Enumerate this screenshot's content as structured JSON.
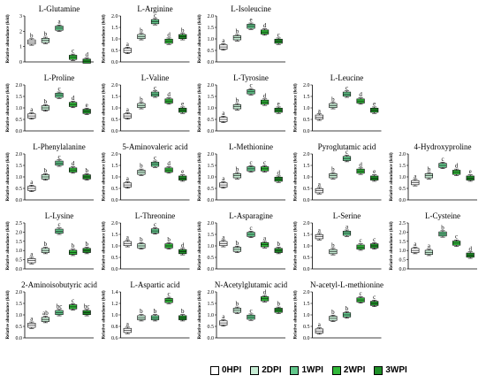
{
  "legend": [
    {
      "label": "0HPI",
      "color": "#ffffff"
    },
    {
      "label": "2DPI",
      "color": "#c6ecd4"
    },
    {
      "label": "1WPI",
      "color": "#62c78b"
    },
    {
      "label": "2WPI",
      "color": "#31b83a"
    },
    {
      "label": "3WPI",
      "color": "#1f8f28"
    }
  ],
  "chart_data": [
    {
      "type": "box",
      "title": "L-Glutamine",
      "ylabel": "Relative abundance (fold)",
      "ylim": [
        0,
        3
      ],
      "yticks": [
        "0",
        "1",
        "2",
        "3"
      ],
      "categories": [
        "0HPI",
        "2DPI",
        "1WPI",
        "2WPI",
        "3WPI"
      ],
      "values": [
        1.3,
        1.4,
        2.2,
        0.3,
        0.05
      ],
      "letters": [
        "b",
        "b",
        "a",
        "c",
        "d"
      ]
    },
    {
      "type": "box",
      "title": "L-Arginine",
      "ylabel": "Relative abundance (fold)",
      "ylim": [
        0,
        2.0
      ],
      "yticks": [
        "0.0",
        "0.5",
        "1.0",
        "1.5",
        "2.0"
      ],
      "categories": [
        "0HPI",
        "2DPI",
        "1WPI",
        "2WPI",
        "3WPI"
      ],
      "values": [
        0.5,
        1.1,
        1.75,
        0.9,
        1.1
      ],
      "letters": [
        "a",
        "b",
        "c",
        "d",
        "b"
      ]
    },
    {
      "type": "box",
      "title": "L-Isoleucine",
      "ylabel": "Relative abundance (fold)",
      "ylim": [
        0,
        2.0
      ],
      "yticks": [
        "0.0",
        "0.5",
        "1.0",
        "1.5",
        "2.0"
      ],
      "categories": [
        "0HPI",
        "2DPI",
        "1WPI",
        "2WPI",
        "3WPI"
      ],
      "values": [
        0.65,
        1.05,
        1.55,
        1.3,
        0.9
      ],
      "letters": [
        "a",
        "b",
        "e",
        "d",
        "c"
      ]
    },
    {
      "type": "box",
      "title": "L-Proline",
      "ylabel": "Relative abundance (fold)",
      "ylim": [
        0,
        2.0
      ],
      "yticks": [
        "0.0",
        "0.5",
        "1.0",
        "1.5",
        "2.0"
      ],
      "categories": [
        "0HPI",
        "2DPI",
        "1WPI",
        "2WPI",
        "3WPI"
      ],
      "values": [
        0.65,
        1.0,
        1.55,
        1.15,
        0.85
      ],
      "letters": [
        "a",
        "b",
        "c",
        "d",
        "e"
      ]
    },
    {
      "type": "box",
      "title": "L-Valine",
      "ylabel": "Relative abundance (fold)",
      "ylim": [
        0,
        2.0
      ],
      "yticks": [
        "0.0",
        "0.5",
        "1.0",
        "1.5",
        "2.0"
      ],
      "categories": [
        "0HPI",
        "2DPI",
        "1WPI",
        "2WPI",
        "3WPI"
      ],
      "values": [
        0.65,
        1.1,
        1.6,
        1.3,
        0.9
      ],
      "letters": [
        "a",
        "b",
        "c",
        "d",
        "e"
      ]
    },
    {
      "type": "box",
      "title": "L-Tyrosine",
      "ylabel": "Relative abundance (fold)",
      "ylim": [
        0,
        2.0
      ],
      "yticks": [
        "0.0",
        "0.5",
        "1.0",
        "1.5",
        "2.0"
      ],
      "categories": [
        "0HPI",
        "2DPI",
        "1WPI",
        "2WPI",
        "3WPI"
      ],
      "values": [
        0.5,
        1.05,
        1.7,
        1.25,
        0.9
      ],
      "letters": [
        "a",
        "b",
        "c",
        "d",
        "e"
      ]
    },
    {
      "type": "box",
      "title": "L-Leucine",
      "ylabel": "Relative abundance (fold)",
      "ylim": [
        0,
        2.0
      ],
      "yticks": [
        "0.0",
        "0.5",
        "1.0",
        "1.5",
        "2.0"
      ],
      "categories": [
        "0HPI",
        "2DPI",
        "1WPI",
        "2WPI",
        "3WPI"
      ],
      "values": [
        0.6,
        1.1,
        1.6,
        1.3,
        0.9
      ],
      "letters": [
        "a",
        "b",
        "c",
        "d",
        "e"
      ]
    },
    {
      "type": "box",
      "title": "L-Phenylalanine",
      "ylabel": "Relative abundance (fold)",
      "ylim": [
        0,
        2.0
      ],
      "yticks": [
        "0.0",
        "0.5",
        "1.0",
        "1.5",
        "2.0"
      ],
      "categories": [
        "0HPI",
        "2DPI",
        "1WPI",
        "2WPI",
        "3WPI"
      ],
      "values": [
        0.5,
        1.0,
        1.6,
        1.3,
        1.0
      ],
      "letters": [
        "a",
        "b",
        "c",
        "d",
        "b"
      ]
    },
    {
      "type": "box",
      "title": "5-Aminovaleric acid",
      "ylabel": "Relative abundance (fold)",
      "ylim": [
        0,
        2.0
      ],
      "yticks": [
        "0.0",
        "0.5",
        "1.0",
        "1.5",
        "2.0"
      ],
      "categories": [
        "0HPI",
        "2DPI",
        "1WPI",
        "2WPI",
        "3WPI"
      ],
      "values": [
        0.65,
        1.2,
        1.55,
        1.3,
        0.95
      ],
      "letters": [
        "a",
        "b",
        "c",
        "d",
        "e"
      ]
    },
    {
      "type": "box",
      "title": "L-Methionine",
      "ylabel": "Relative abundance (fold)",
      "ylim": [
        0,
        2.0
      ],
      "yticks": [
        "0.0",
        "0.5",
        "1.0",
        "1.5",
        "2.0"
      ],
      "categories": [
        "0HPI",
        "2DPI",
        "1WPI",
        "2WPI",
        "3WPI"
      ],
      "values": [
        0.65,
        1.05,
        1.35,
        1.35,
        0.9
      ],
      "letters": [
        "a",
        "b",
        "c",
        "c",
        "d"
      ]
    },
    {
      "type": "box",
      "title": "Pyroglutamic acid",
      "ylabel": "Relative abundance (fold)",
      "ylim": [
        0,
        2.0
      ],
      "yticks": [
        "0.0",
        "0.5",
        "1.0",
        "1.5",
        "2.0"
      ],
      "categories": [
        "0HPI",
        "2DPI",
        "1WPI",
        "2WPI",
        "3WPI"
      ],
      "values": [
        0.4,
        1.05,
        1.8,
        1.25,
        0.95
      ],
      "letters": [
        "a",
        "b",
        "c",
        "d",
        "e"
      ]
    },
    {
      "type": "box",
      "title": "4-Hydroxyproline",
      "ylabel": "Relative abundance (fold)",
      "ylim": [
        0,
        2.0
      ],
      "yticks": [
        "0.0",
        "0.5",
        "1.0",
        "1.5",
        "2.0"
      ],
      "categories": [
        "0HPI",
        "2DPI",
        "1WPI",
        "2WPI",
        "3WPI"
      ],
      "values": [
        0.75,
        1.05,
        1.5,
        1.2,
        0.95
      ],
      "letters": [
        "a",
        "b",
        "c",
        "d",
        "e"
      ]
    },
    {
      "type": "box",
      "title": "L-Lysine",
      "ylabel": "Relative abundance (fold)",
      "ylim": [
        0,
        2.5
      ],
      "yticks": [
        "0.0",
        "0.5",
        "1.0",
        "1.5",
        "2.0",
        "2.5"
      ],
      "categories": [
        "0HPI",
        "2DPI",
        "1WPI",
        "2WPI",
        "3WPI"
      ],
      "values": [
        0.45,
        1.0,
        2.05,
        0.9,
        1.0
      ],
      "letters": [
        "a",
        "b",
        "c",
        "b",
        "b"
      ]
    },
    {
      "type": "box",
      "title": "L-Threonine",
      "ylabel": "Relative abundance (fold)",
      "ylim": [
        0,
        2.0
      ],
      "yticks": [
        "0.0",
        "0.5",
        "1.0",
        "1.5",
        "2.0"
      ],
      "categories": [
        "0HPI",
        "2DPI",
        "1WPI",
        "2WPI",
        "3WPI"
      ],
      "values": [
        1.1,
        1.0,
        1.65,
        1.0,
        0.75
      ],
      "letters": [
        "a",
        "b",
        "c",
        "b",
        "d"
      ]
    },
    {
      "type": "box",
      "title": "L-Asparagine",
      "ylabel": "Relative abundance (fold)",
      "ylim": [
        0,
        2.0
      ],
      "yticks": [
        "0.0",
        "0.5",
        "1.0",
        "1.5",
        "2.0"
      ],
      "categories": [
        "0HPI",
        "2DPI",
        "1WPI",
        "2WPI",
        "3WPI"
      ],
      "values": [
        1.1,
        0.85,
        1.5,
        1.05,
        0.8
      ],
      "letters": [
        "a",
        "b",
        "c",
        "a",
        "b"
      ]
    },
    {
      "type": "box",
      "title": "L-Serine",
      "ylabel": "Relative abundance (fold)",
      "ylim": [
        0,
        2.0
      ],
      "yticks": [
        "0.0",
        "0.5",
        "1.0",
        "1.5",
        "2.0"
      ],
      "categories": [
        "0HPI",
        "2DPI",
        "1WPI",
        "2WPI",
        "3WPI"
      ],
      "values": [
        1.4,
        0.75,
        1.55,
        0.95,
        1.0
      ],
      "letters": [
        "a",
        "b",
        "a",
        "c",
        "c"
      ]
    },
    {
      "type": "box",
      "title": "L-Cysteine",
      "ylabel": "Relative abundance (fold)",
      "ylim": [
        0,
        2.5
      ],
      "yticks": [
        "0.0",
        "0.5",
        "1.0",
        "1.5",
        "2.0",
        "2.5"
      ],
      "categories": [
        "0HPI",
        "2DPI",
        "1WPI",
        "2WPI",
        "3WPI"
      ],
      "values": [
        1.0,
        0.9,
        1.9,
        1.4,
        0.75
      ],
      "letters": [
        "a",
        "a",
        "b",
        "c",
        "d"
      ]
    },
    {
      "type": "box",
      "title": "2-Aminoisobutyric acid",
      "ylabel": "Relative abundance (fold)",
      "ylim": [
        0,
        2.0
      ],
      "yticks": [
        "0.0",
        "0.5",
        "1.0",
        "1.5",
        "2.0"
      ],
      "categories": [
        "0HPI",
        "2DPI",
        "1WPI",
        "2WPI",
        "3WPI"
      ],
      "values": [
        0.55,
        0.8,
        1.1,
        1.35,
        1.1
      ],
      "letters": [
        "a",
        "ab",
        "bc",
        "c",
        "bc"
      ]
    },
    {
      "type": "box",
      "title": "L-Aspartic acid",
      "ylabel": "Relative abundance (fold)",
      "ylim": [
        0.6,
        1.4
      ],
      "yticks": [
        "0.6",
        "0.8",
        "1.0",
        "1.2",
        "1.4"
      ],
      "categories": [
        "0HPI",
        "2DPI",
        "1WPI",
        "2WPI",
        "3WPI"
      ],
      "values": [
        0.73,
        0.95,
        0.95,
        1.25,
        0.95
      ],
      "letters": [
        "a",
        "b",
        "b",
        "c",
        "b"
      ]
    },
    {
      "type": "box",
      "title": "N-Acetylglutamic acid",
      "ylabel": "Relative abundance (fold)",
      "ylim": [
        0,
        2.0
      ],
      "yticks": [
        "0.0",
        "0.5",
        "1.0",
        "1.5",
        "2.0"
      ],
      "categories": [
        "0HPI",
        "2DPI",
        "1WPI",
        "2WPI",
        "3WPI"
      ],
      "values": [
        0.65,
        1.2,
        0.9,
        1.7,
        1.2
      ],
      "letters": [
        "a",
        "b",
        "c",
        "d",
        "b"
      ]
    },
    {
      "type": "box",
      "title": "N-acetyl-L-methionine",
      "ylabel": "Relative abundance (fold)",
      "ylim": [
        0,
        2.0
      ],
      "yticks": [
        "0.0",
        "0.5",
        "1.0",
        "1.5",
        "2.0"
      ],
      "categories": [
        "0HPI",
        "2DPI",
        "1WPI",
        "2WPI",
        "3WPI"
      ],
      "values": [
        0.3,
        0.85,
        1.0,
        1.65,
        1.5
      ],
      "letters": [
        "a",
        "b",
        "b",
        "c",
        "c"
      ]
    }
  ]
}
